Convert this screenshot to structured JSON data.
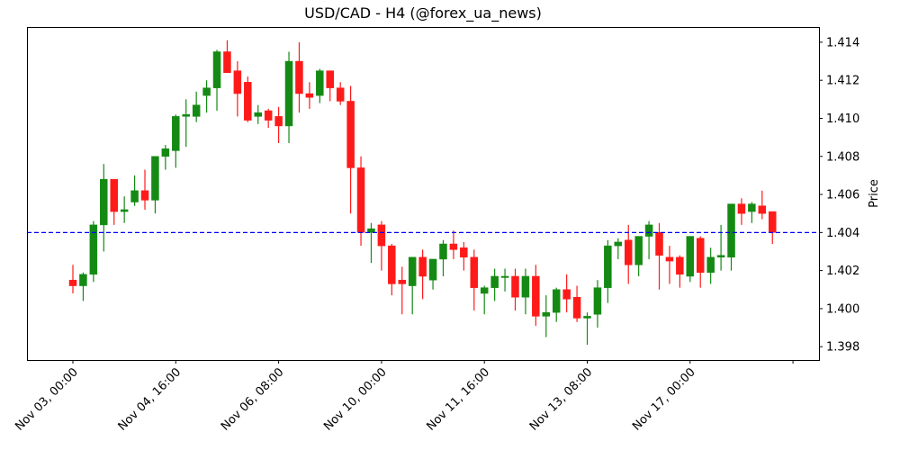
{
  "chart_data": {
    "type": "candlestick",
    "title": "USD/CAD - H4 (@forex_ua_news)",
    "xlabel": "",
    "ylabel": "Price",
    "ylim": [
      1.3973,
      1.4148
    ],
    "yticks": [
      "1.398",
      "1.400",
      "1.402",
      "1.404",
      "1.406",
      "1.408",
      "1.410",
      "1.412",
      "1.414"
    ],
    "xticks": [
      "Nov 03, 00:00",
      "Nov 04, 16:00",
      "Nov 06, 08:00",
      "Nov 10, 00:00",
      "Nov 11, 16:00",
      "Nov 13, 08:00",
      "Nov 17, 00:00",
      ""
    ],
    "grid": false,
    "legend": "none",
    "reference_line": {
      "value": 1.404,
      "color": "#0000ff",
      "style": "dashed"
    },
    "colors": {
      "up": "#148a14",
      "down": "#ff1a1a",
      "line": "#0000ff"
    },
    "candles": [
      {
        "o": 1.4015,
        "h": 1.4023,
        "l": 1.4008,
        "c": 1.4012
      },
      {
        "o": 1.4012,
        "h": 1.4019,
        "l": 1.4004,
        "c": 1.4018
      },
      {
        "o": 1.4018,
        "h": 1.4046,
        "l": 1.4014,
        "c": 1.4044
      },
      {
        "o": 1.4044,
        "h": 1.4076,
        "l": 1.403,
        "c": 1.4068
      },
      {
        "o": 1.4068,
        "h": 1.4068,
        "l": 1.4044,
        "c": 1.4051
      },
      {
        "o": 1.4051,
        "h": 1.4059,
        "l": 1.4045,
        "c": 1.4052
      },
      {
        "o": 1.4056,
        "h": 1.407,
        "l": 1.4054,
        "c": 1.4062
      },
      {
        "o": 1.4062,
        "h": 1.4073,
        "l": 1.4052,
        "c": 1.4057
      },
      {
        "o": 1.4057,
        "h": 1.408,
        "l": 1.405,
        "c": 1.408
      },
      {
        "o": 1.408,
        "h": 1.4086,
        "l": 1.4073,
        "c": 1.4084
      },
      {
        "o": 1.4083,
        "h": 1.4102,
        "l": 1.4074,
        "c": 1.4101
      },
      {
        "o": 1.4101,
        "h": 1.411,
        "l": 1.4085,
        "c": 1.4102
      },
      {
        "o": 1.4101,
        "h": 1.4114,
        "l": 1.4098,
        "c": 1.4107
      },
      {
        "o": 1.4112,
        "h": 1.412,
        "l": 1.4103,
        "c": 1.4116
      },
      {
        "o": 1.4116,
        "h": 1.4136,
        "l": 1.4104,
        "c": 1.4135
      },
      {
        "o": 1.4135,
        "h": 1.4141,
        "l": 1.4124,
        "c": 1.4124
      },
      {
        "o": 1.4125,
        "h": 1.413,
        "l": 1.4101,
        "c": 1.4113
      },
      {
        "o": 1.4119,
        "h": 1.4122,
        "l": 1.4098,
        "c": 1.4099
      },
      {
        "o": 1.4101,
        "h": 1.4107,
        "l": 1.4097,
        "c": 1.4103
      },
      {
        "o": 1.4104,
        "h": 1.4105,
        "l": 1.4095,
        "c": 1.4099
      },
      {
        "o": 1.4101,
        "h": 1.4106,
        "l": 1.4087,
        "c": 1.4096
      },
      {
        "o": 1.4096,
        "h": 1.4135,
        "l": 1.4087,
        "c": 1.413
      },
      {
        "o": 1.413,
        "h": 1.414,
        "l": 1.4103,
        "c": 1.4113
      },
      {
        "o": 1.4113,
        "h": 1.4119,
        "l": 1.4105,
        "c": 1.4111
      },
      {
        "o": 1.4112,
        "h": 1.4126,
        "l": 1.4108,
        "c": 1.4125
      },
      {
        "o": 1.4125,
        "h": 1.4125,
        "l": 1.4109,
        "c": 1.4116
      },
      {
        "o": 1.4116,
        "h": 1.4119,
        "l": 1.4107,
        "c": 1.4109
      },
      {
        "o": 1.4109,
        "h": 1.4117,
        "l": 1.405,
        "c": 1.4074
      },
      {
        "o": 1.4074,
        "h": 1.408,
        "l": 1.4033,
        "c": 1.404
      },
      {
        "o": 1.404,
        "h": 1.4045,
        "l": 1.4024,
        "c": 1.4042
      },
      {
        "o": 1.4044,
        "h": 1.4046,
        "l": 1.402,
        "c": 1.4033
      },
      {
        "o": 1.4033,
        "h": 1.4034,
        "l": 1.4007,
        "c": 1.4013
      },
      {
        "o": 1.4015,
        "h": 1.4022,
        "l": 1.3997,
        "c": 1.4013
      },
      {
        "o": 1.4012,
        "h": 1.4027,
        "l": 1.3997,
        "c": 1.4027
      },
      {
        "o": 1.4027,
        "h": 1.4031,
        "l": 1.4005,
        "c": 1.4017
      },
      {
        "o": 1.4015,
        "h": 1.4026,
        "l": 1.401,
        "c": 1.4026
      },
      {
        "o": 1.4026,
        "h": 1.4036,
        "l": 1.4017,
        "c": 1.4034
      },
      {
        "o": 1.4034,
        "h": 1.4041,
        "l": 1.4026,
        "c": 1.4031
      },
      {
        "o": 1.4032,
        "h": 1.4035,
        "l": 1.402,
        "c": 1.4027
      },
      {
        "o": 1.4027,
        "h": 1.4031,
        "l": 1.3999,
        "c": 1.4011
      },
      {
        "o": 1.4008,
        "h": 1.4012,
        "l": 1.3997,
        "c": 1.4011
      },
      {
        "o": 1.4011,
        "h": 1.4021,
        "l": 1.4004,
        "c": 1.4017
      },
      {
        "o": 1.4017,
        "h": 1.4021,
        "l": 1.4009,
        "c": 1.4017
      },
      {
        "o": 1.4017,
        "h": 1.4021,
        "l": 1.3999,
        "c": 1.4006
      },
      {
        "o": 1.4006,
        "h": 1.4021,
        "l": 1.3997,
        "c": 1.4017
      },
      {
        "o": 1.4017,
        "h": 1.4023,
        "l": 1.3991,
        "c": 1.3996
      },
      {
        "o": 1.3996,
        "h": 1.4007,
        "l": 1.3985,
        "c": 1.3998
      },
      {
        "o": 1.3998,
        "h": 1.4011,
        "l": 1.3993,
        "c": 1.401
      },
      {
        "o": 1.401,
        "h": 1.4018,
        "l": 1.3998,
        "c": 1.4005
      },
      {
        "o": 1.4006,
        "h": 1.4012,
        "l": 1.3993,
        "c": 1.3995
      },
      {
        "o": 1.3995,
        "h": 1.3998,
        "l": 1.3981,
        "c": 1.3996
      },
      {
        "o": 1.3997,
        "h": 1.4015,
        "l": 1.399,
        "c": 1.4011
      },
      {
        "o": 1.4011,
        "h": 1.4036,
        "l": 1.4003,
        "c": 1.4033
      },
      {
        "o": 1.4033,
        "h": 1.4037,
        "l": 1.4026,
        "c": 1.4035
      },
      {
        "o": 1.4036,
        "h": 1.4044,
        "l": 1.4013,
        "c": 1.4023
      },
      {
        "o": 1.4023,
        "h": 1.4038,
        "l": 1.4017,
        "c": 1.4038
      },
      {
        "o": 1.4038,
        "h": 1.4046,
        "l": 1.4026,
        "c": 1.4044
      },
      {
        "o": 1.404,
        "h": 1.4045,
        "l": 1.401,
        "c": 1.4028
      },
      {
        "o": 1.4027,
        "h": 1.4033,
        "l": 1.4013,
        "c": 1.4025
      },
      {
        "o": 1.4027,
        "h": 1.4028,
        "l": 1.4011,
        "c": 1.4018
      },
      {
        "o": 1.4017,
        "h": 1.4038,
        "l": 1.4014,
        "c": 1.4038
      },
      {
        "o": 1.4037,
        "h": 1.4038,
        "l": 1.4011,
        "c": 1.4019
      },
      {
        "o": 1.4019,
        "h": 1.4032,
        "l": 1.4013,
        "c": 1.4027
      },
      {
        "o": 1.4027,
        "h": 1.4044,
        "l": 1.402,
        "c": 1.4028
      },
      {
        "o": 1.4027,
        "h": 1.4055,
        "l": 1.402,
        "c": 1.4055
      },
      {
        "o": 1.4055,
        "h": 1.4058,
        "l": 1.4044,
        "c": 1.405
      },
      {
        "o": 1.4051,
        "h": 1.4056,
        "l": 1.4045,
        "c": 1.4055
      },
      {
        "o": 1.4054,
        "h": 1.4062,
        "l": 1.4047,
        "c": 1.405
      },
      {
        "o": 1.4051,
        "h": 1.4051,
        "l": 1.4034,
        "c": 1.404
      }
    ]
  }
}
